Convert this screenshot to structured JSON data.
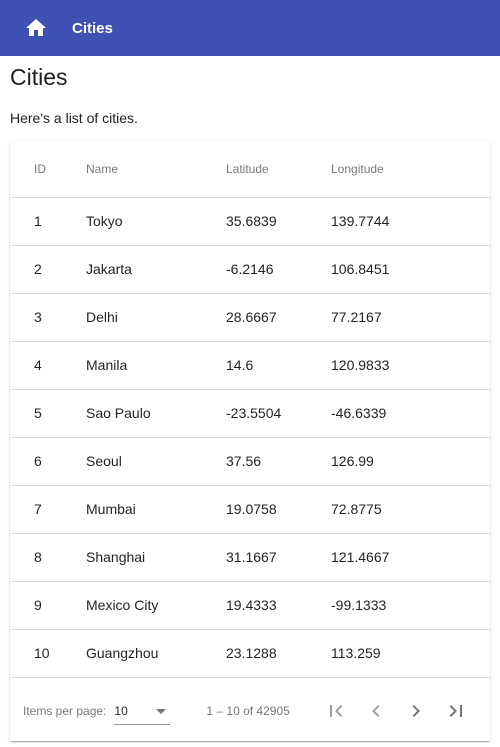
{
  "toolbar": {
    "title": "Cities",
    "home_icon": "home-icon",
    "background": "#3f51b5"
  },
  "page": {
    "title": "Cities",
    "intro": "Here's a list of cities."
  },
  "table": {
    "columns": [
      "ID",
      "Name",
      "Latitude",
      "Longitude"
    ],
    "rows": [
      [
        "1",
        "Tokyo",
        "35.6839",
        "139.7744"
      ],
      [
        "2",
        "Jakarta",
        "-6.2146",
        "106.8451"
      ],
      [
        "3",
        "Delhi",
        "28.6667",
        "77.2167"
      ],
      [
        "4",
        "Manila",
        "14.6",
        "120.9833"
      ],
      [
        "5",
        "Sao Paulo",
        "-23.5504",
        "-46.6339"
      ],
      [
        "6",
        "Seoul",
        "37.56",
        "126.99"
      ],
      [
        "7",
        "Mumbai",
        "19.0758",
        "72.8775"
      ],
      [
        "8",
        "Shanghai",
        "31.1667",
        "121.4667"
      ],
      [
        "9",
        "Mexico City",
        "19.4333",
        "-99.1333"
      ],
      [
        "10",
        "Guangzhou",
        "23.1288",
        "113.259"
      ]
    ]
  },
  "paginator": {
    "items_per_page_label": "Items per page:",
    "items_per_page_value": "10",
    "range_label": "1 – 10 of 42905",
    "first_page_icon": "first-page-icon",
    "previous_page_icon": "chevron-left-icon",
    "next_page_icon": "chevron-right-icon",
    "last_page_icon": "last-page-icon"
  }
}
